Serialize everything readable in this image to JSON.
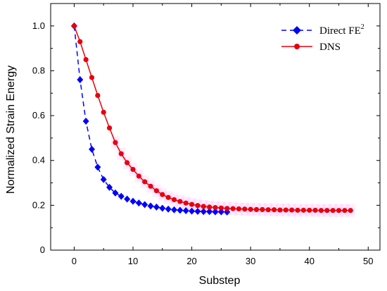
{
  "chart_data": {
    "type": "line",
    "xlabel": "Substep",
    "ylabel": "Normalized Strain Energy",
    "xlim": [
      -4,
      52
    ],
    "ylim": [
      0,
      1.1
    ],
    "xticks": [
      0,
      10,
      20,
      30,
      40,
      50
    ],
    "yticks": [
      0,
      0.2,
      0.4,
      0.6,
      0.8,
      1.0
    ],
    "xtick_labels": [
      "0",
      "10",
      "20",
      "30",
      "40",
      "50"
    ],
    "ytick_labels": [
      "0",
      "0.2",
      "0.4",
      "0.6",
      "0.8",
      "1.0"
    ],
    "grid": false,
    "legend_position": "top-right",
    "series": [
      {
        "name": "Direct FE",
        "name_superscript": "2",
        "color": "#0000ff",
        "marker": "diamond",
        "line_style": "dashed",
        "x": [
          0,
          1,
          2,
          3,
          4,
          5,
          6,
          7,
          8,
          9,
          10,
          11,
          12,
          13,
          14,
          15,
          16,
          17,
          18,
          19,
          20,
          21,
          22,
          23,
          24,
          25,
          26
        ],
        "values": [
          1.0,
          0.76,
          0.575,
          0.45,
          0.37,
          0.315,
          0.28,
          0.255,
          0.24,
          0.228,
          0.218,
          0.21,
          0.203,
          0.197,
          0.192,
          0.187,
          0.183,
          0.18,
          0.178,
          0.176,
          0.174,
          0.173,
          0.172,
          0.172,
          0.171,
          0.171,
          0.17
        ]
      },
      {
        "name": "DNS",
        "color": "#e8000b",
        "marker": "circle",
        "line_style": "solid",
        "x": [
          0,
          1,
          2,
          3,
          4,
          5,
          6,
          7,
          8,
          9,
          10,
          11,
          12,
          13,
          14,
          15,
          16,
          17,
          18,
          19,
          20,
          21,
          22,
          23,
          24,
          25,
          26,
          27,
          28,
          29,
          30,
          31,
          32,
          33,
          34,
          35,
          36,
          37,
          38,
          39,
          40,
          41,
          42,
          43,
          44,
          45,
          46,
          47
        ],
        "values": [
          1.0,
          0.93,
          0.85,
          0.77,
          0.69,
          0.615,
          0.545,
          0.48,
          0.43,
          0.39,
          0.36,
          0.33,
          0.305,
          0.285,
          0.265,
          0.248,
          0.235,
          0.225,
          0.217,
          0.21,
          0.204,
          0.199,
          0.195,
          0.192,
          0.19,
          0.188,
          0.186,
          0.185,
          0.184,
          0.183,
          0.182,
          0.181,
          0.181,
          0.18,
          0.18,
          0.179,
          0.179,
          0.179,
          0.178,
          0.178,
          0.178,
          0.178,
          0.177,
          0.177,
          0.177,
          0.177,
          0.177,
          0.177
        ]
      }
    ]
  }
}
